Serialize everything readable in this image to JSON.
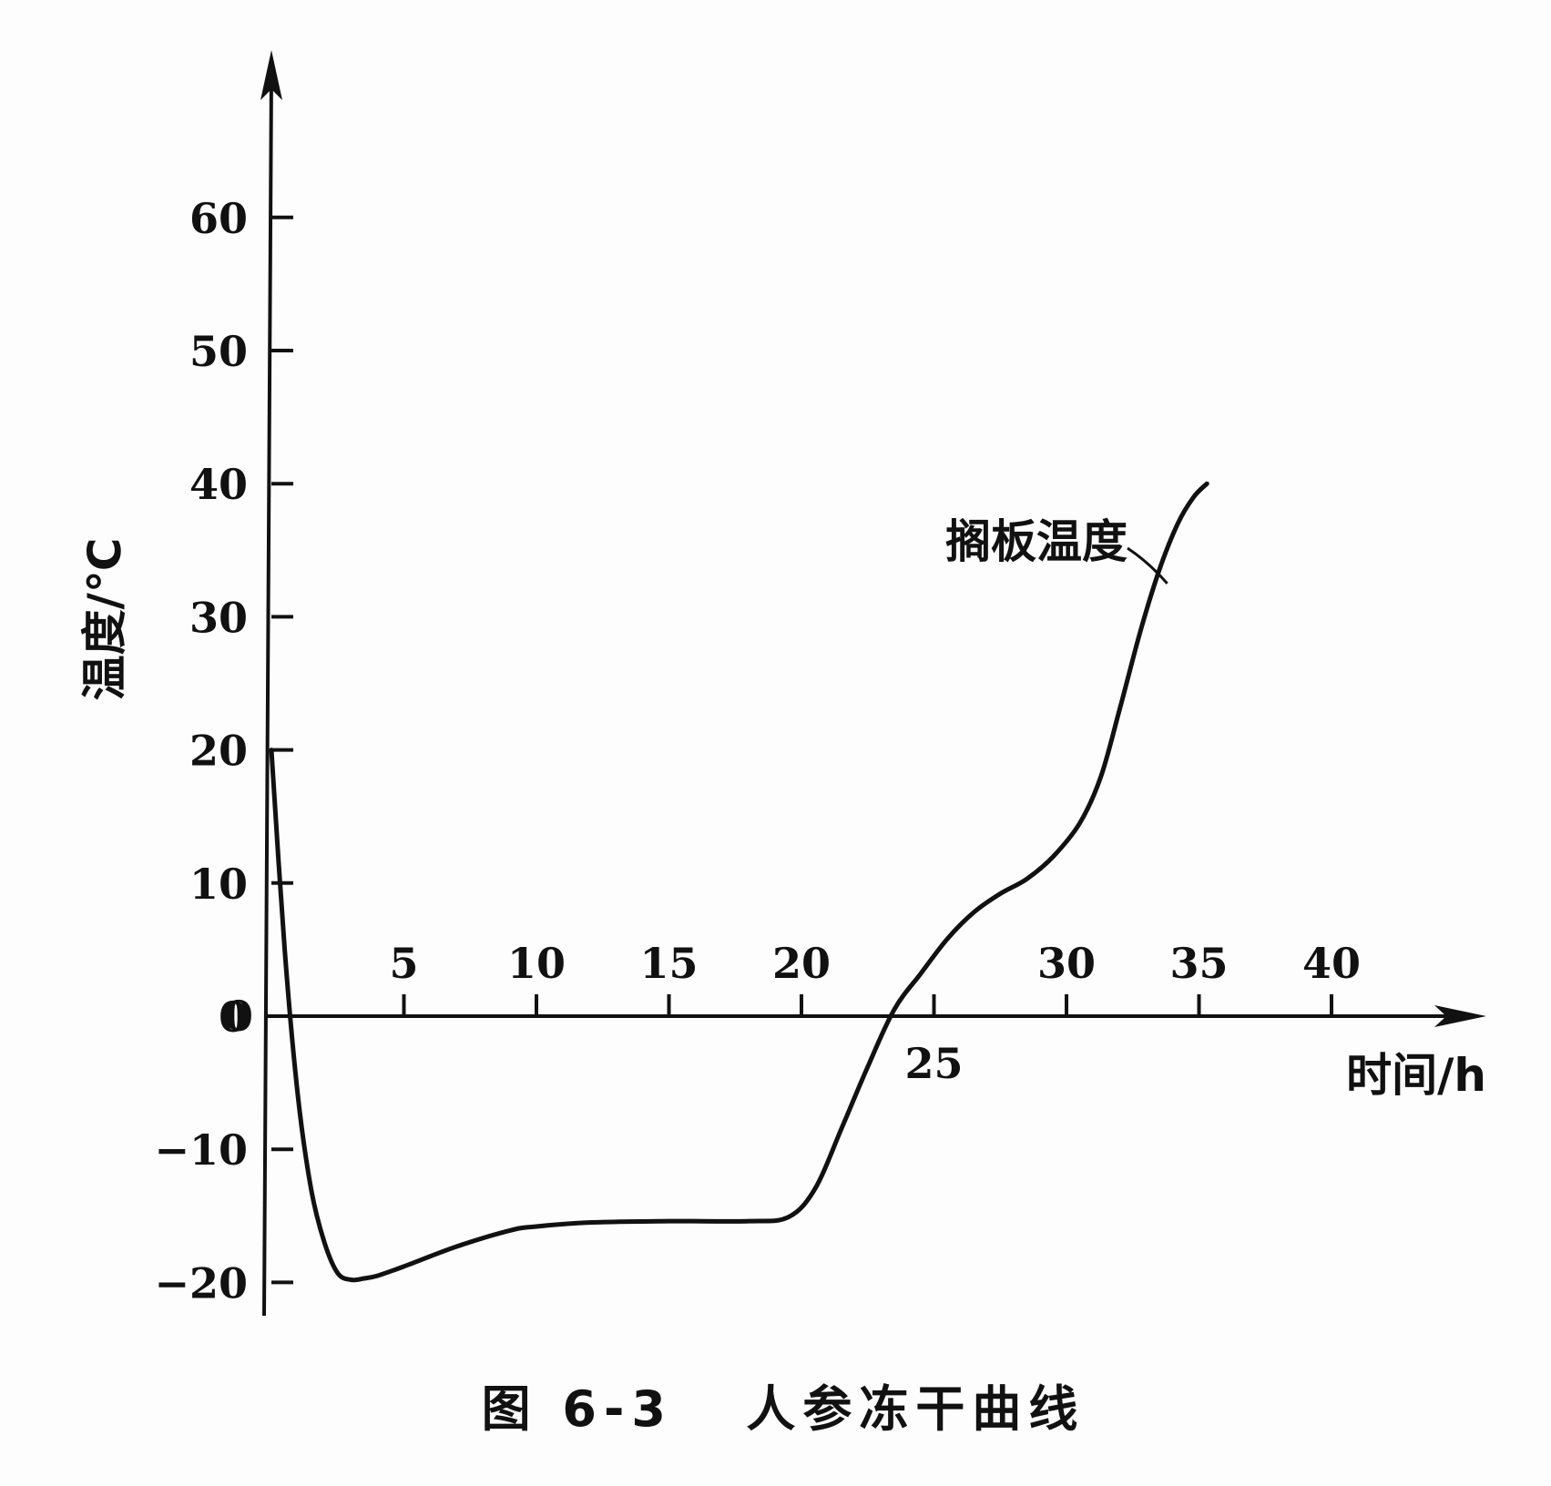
{
  "chart_data": {
    "type": "line",
    "caption": "图 6-3   人参冻干曲线",
    "xlabel": "时间/h",
    "ylabel": "温度/℃",
    "xlim": [
      0,
      45
    ],
    "ylim": [
      -22,
      70
    ],
    "x_ticks": [
      5,
      10,
      15,
      20,
      25,
      30,
      35,
      40
    ],
    "y_ticks": [
      -20,
      -10,
      0,
      10,
      20,
      30,
      40,
      50,
      60
    ],
    "origin_label": "0",
    "grid": false,
    "series": [
      {
        "name": "搁板温度",
        "x": [
          0,
          0.5,
          1,
          1.5,
          2,
          2.5,
          3,
          3.5,
          4,
          5,
          7,
          9,
          10,
          12,
          15,
          18,
          19.5,
          20.5,
          21.5,
          22.5,
          23.5,
          24.5,
          25.5,
          26.5,
          27.5,
          28.5,
          29.5,
          30.5,
          31.3,
          32,
          32.8,
          33.5,
          34.2,
          34.8,
          35.3
        ],
        "y": [
          20,
          5,
          -6,
          -13,
          -17,
          -19.3,
          -19.8,
          -19.7,
          -19.5,
          -18.8,
          -17.3,
          -16.1,
          -15.8,
          -15.5,
          -15.4,
          -15.4,
          -15.1,
          -13,
          -8.5,
          -3.8,
          0.5,
          3.2,
          5.8,
          7.8,
          9.2,
          10.3,
          12,
          14.5,
          18,
          23,
          29,
          33.5,
          37,
          39,
          40
        ]
      }
    ],
    "annotations": [
      {
        "text": "搁板温度",
        "target_x": 33.8,
        "target_y": 32.5
      }
    ]
  }
}
